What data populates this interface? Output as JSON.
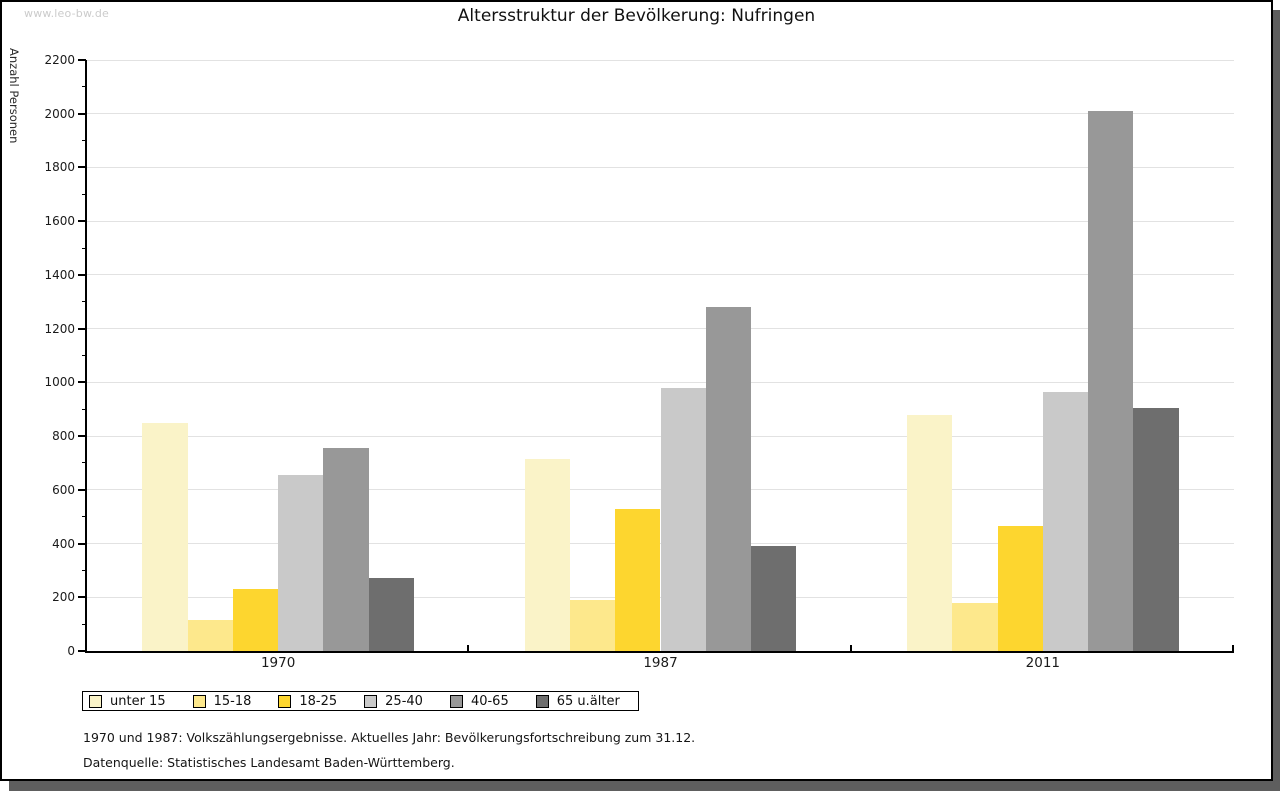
{
  "page": {
    "watermark": "www.leo-bw.de",
    "title": "Altersstruktur der Bevölkerung: Nufringen",
    "footnote1": "1970 und 1987: Volkszählungsergebnisse. Aktuelles Jahr: Bevölkerungsfortschreibung zum 31.12.",
    "footnote2": "Datenquelle: Statistisches Landesamt Baden-Württemberg."
  },
  "chart_data": {
    "type": "bar",
    "title": "Altersstruktur der Bevölkerung: Nufringen",
    "ylabel": "Anzahl Personen",
    "xlabel": "",
    "categories": [
      "1970",
      "1987",
      "2011"
    ],
    "series": [
      {
        "name": "unter 15",
        "color": "#FAF3C8",
        "values": [
          850,
          715,
          880
        ]
      },
      {
        "name": "15-18",
        "color": "#FDE88C",
        "values": [
          115,
          190,
          180
        ]
      },
      {
        "name": "18-25",
        "color": "#FDD62F",
        "values": [
          230,
          530,
          465
        ]
      },
      {
        "name": "25-40",
        "color": "#C9C9C9",
        "values": [
          655,
          980,
          965
        ]
      },
      {
        "name": "40-65",
        "color": "#989898",
        "values": [
          755,
          1280,
          2010
        ]
      },
      {
        "name": "65 u.älter",
        "color": "#6E6E6E",
        "values": [
          270,
          390,
          905
        ]
      }
    ],
    "ylim": [
      0,
      2200
    ],
    "ytick_major": 200,
    "ytick_minor": 100,
    "grid": true,
    "legend_position": "bottom-left"
  },
  "colors": {
    "grid": "#E2E2E2",
    "axis": "#000000",
    "frame_shadow": "#5E5E5E",
    "watermark": "#CBCBCB"
  }
}
